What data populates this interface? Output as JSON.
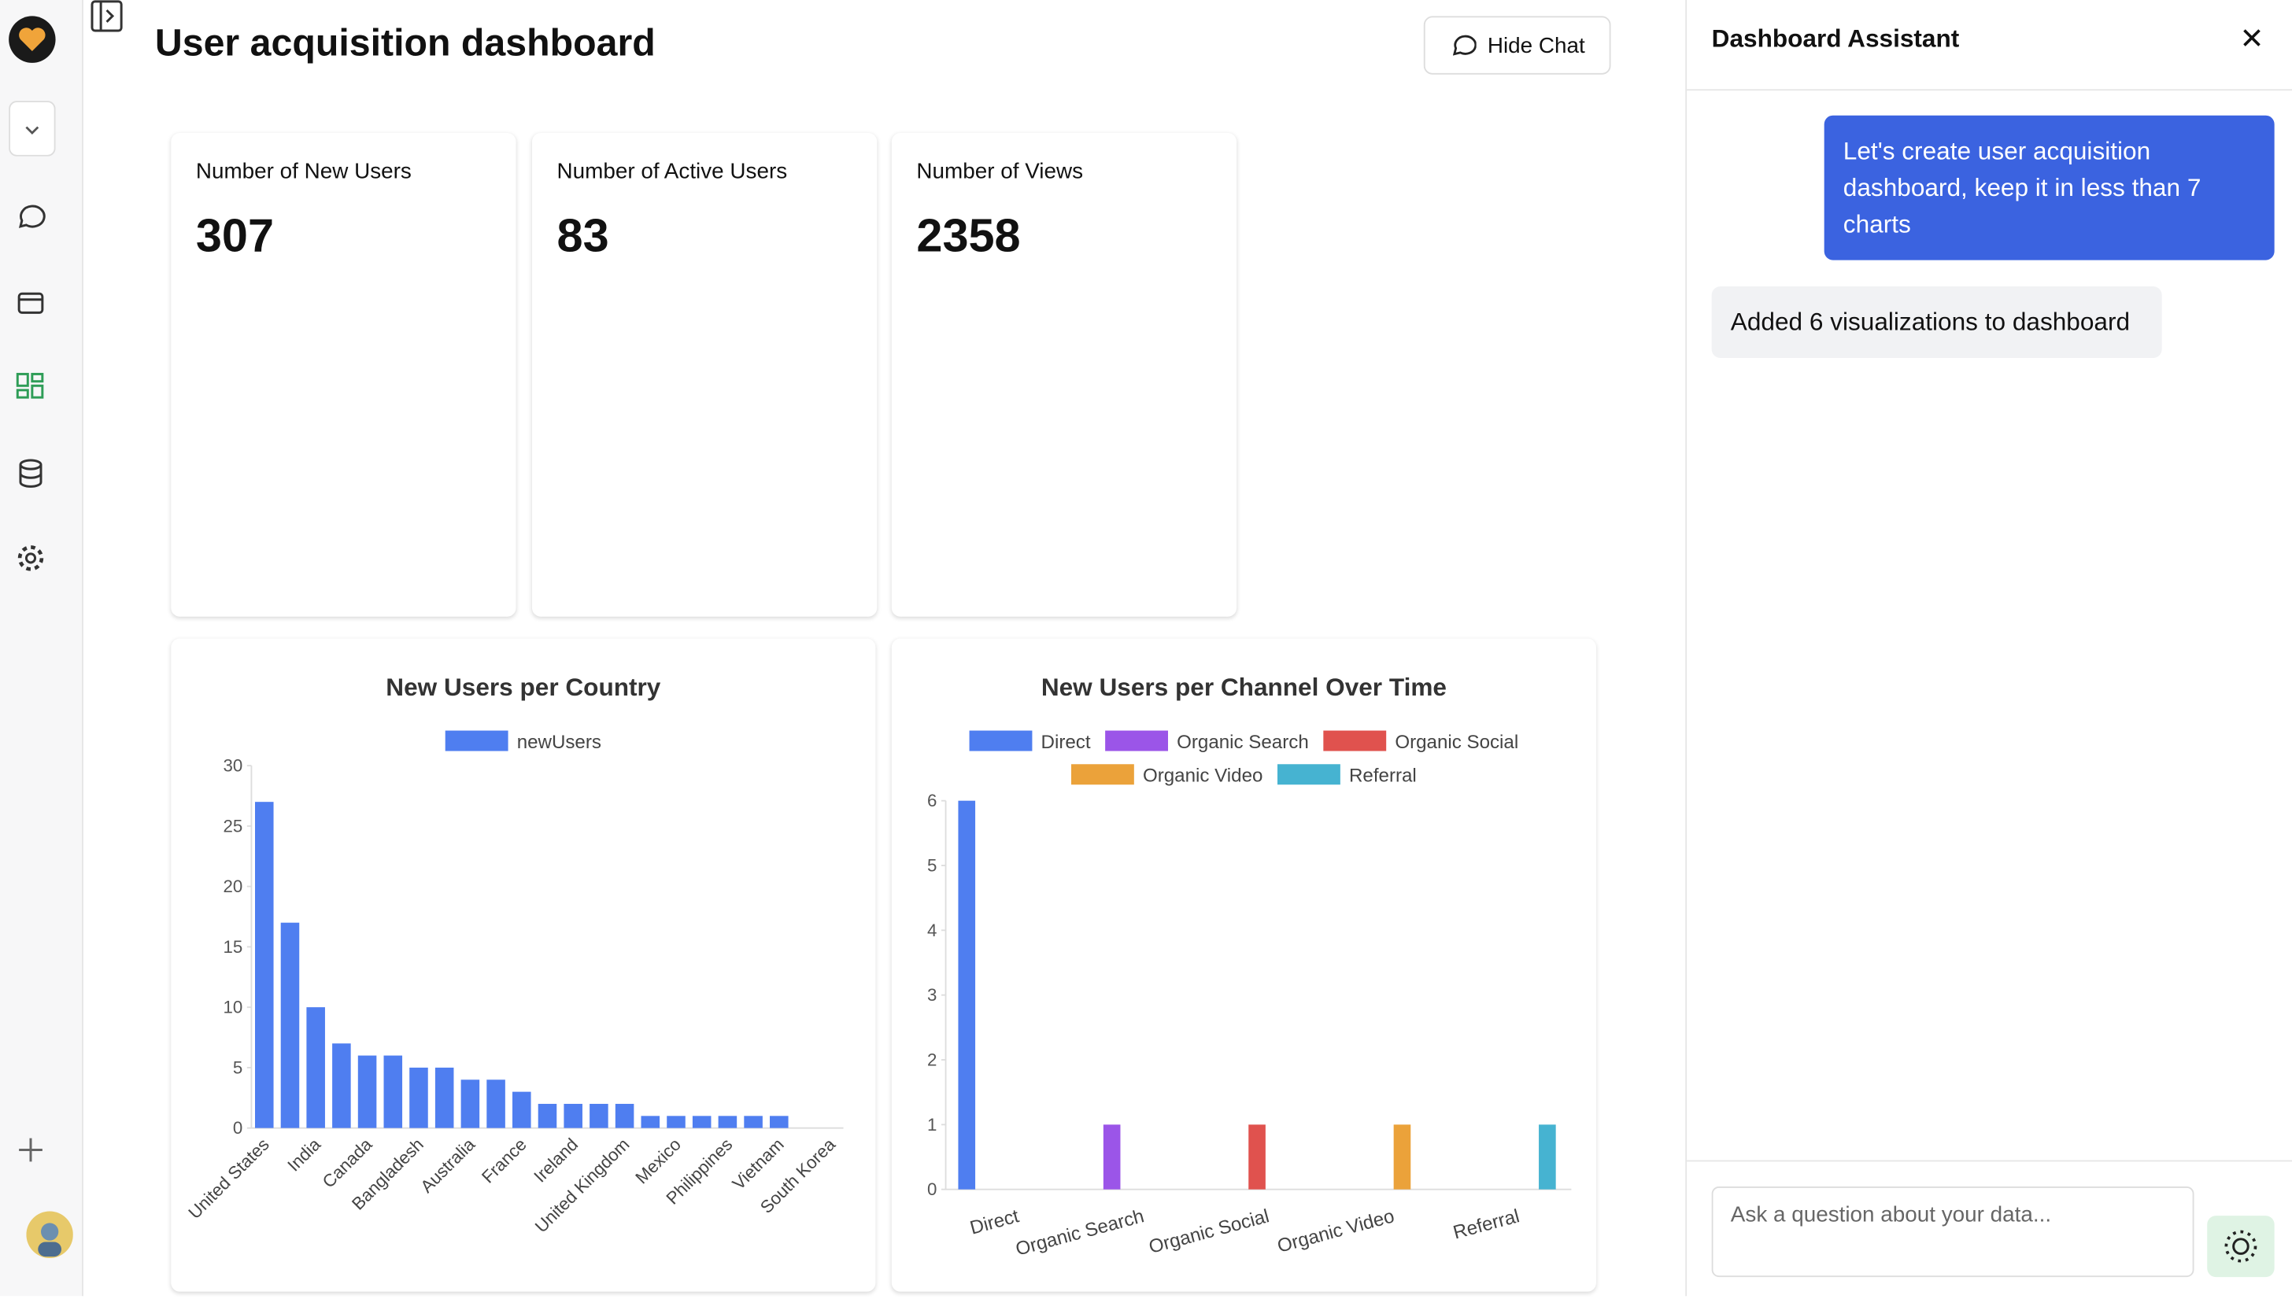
{
  "header": {
    "title": "User acquisition dashboard",
    "button": "Hide Chat"
  },
  "cards": [
    {
      "label": "Number of New Users",
      "value": 307
    },
    {
      "label": "Number of Active Users",
      "value": 83
    },
    {
      "label": "Number of Views",
      "value": 2358
    }
  ],
  "chart_data": [
    {
      "type": "bar",
      "title": "New Users per Country",
      "categories": [
        "United States",
        null,
        "India",
        null,
        "Canada",
        null,
        "Bangladesh",
        null,
        "Australia",
        null,
        "France",
        null,
        "Ireland",
        null,
        "United Kingdom",
        null,
        "Mexico",
        null,
        "Philippines",
        null,
        "Vietnam",
        null,
        "South Korea"
      ],
      "series": [
        {
          "name": "newUsers",
          "color": "#4f7ef0",
          "values": [
            27,
            17,
            10,
            7,
            6,
            6,
            5,
            5,
            4,
            4,
            3,
            2,
            2,
            2,
            2,
            1,
            1,
            1,
            1,
            1,
            1,
            0,
            0
          ]
        }
      ],
      "ylim": [
        0,
        30
      ],
      "yticks": [
        0,
        5,
        10,
        15,
        20,
        25,
        30
      ],
      "legend": "top",
      "grid": false
    },
    {
      "type": "bar",
      "title": "New Users per Channel Over Time",
      "categories": [
        "Direct",
        "Organic Search",
        "Organic Social",
        "Organic Video",
        "Referral"
      ],
      "series": [
        {
          "name": "Direct",
          "color": "#4f7ef0",
          "values": [
            6,
            0,
            0,
            0,
            0
          ]
        },
        {
          "name": "Organic Search",
          "color": "#9b55e8",
          "values": [
            0,
            1,
            0,
            0,
            0
          ]
        },
        {
          "name": "Organic Social",
          "color": "#e0524e",
          "values": [
            0,
            0,
            1,
            0,
            0
          ]
        },
        {
          "name": "Organic Video",
          "color": "#eba23a",
          "values": [
            0,
            0,
            0,
            1,
            0
          ]
        },
        {
          "name": "Referral",
          "color": "#46b3d1",
          "values": [
            0,
            0,
            0,
            0,
            1
          ]
        }
      ],
      "ylim": [
        0,
        6
      ],
      "yticks": [
        0,
        1,
        2,
        3,
        4,
        5,
        6
      ],
      "legend": "top",
      "grid": false
    }
  ],
  "chat": {
    "title": "Dashboard Assistant",
    "messages": [
      {
        "role": "user",
        "text": "Let's create user acquisition dashboard, keep it in less than 7 charts"
      },
      {
        "role": "assistant",
        "text": "Added 6 visualizations to dashboard"
      }
    ],
    "placeholder": "Ask a question about your data..."
  }
}
